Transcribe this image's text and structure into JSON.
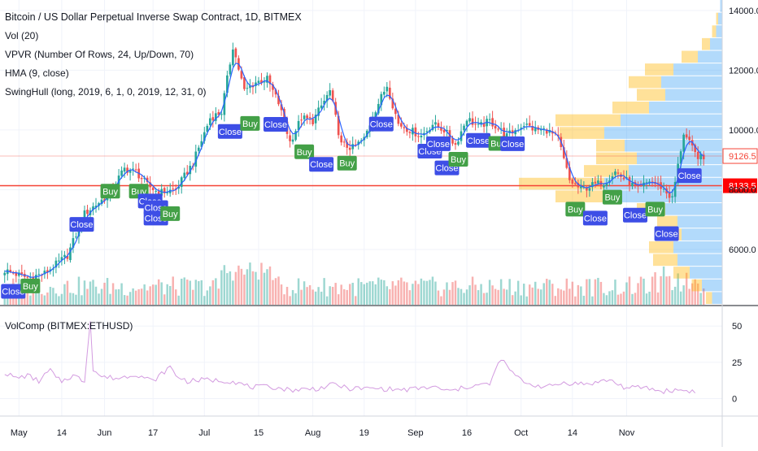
{
  "header": {
    "title": "Bitcoin / US Dollar Perpetual Inverse Swap Contract, 1D, BITMEX",
    "indicators": [
      "Vol (20)",
      "VPVR (Number Of Rows, 24, Up/Down, 70)",
      "HMA (9, close)",
      "SwingHull (long, 2019, 6, 1, 0, 2019, 12, 31, 0)"
    ]
  },
  "lower_pane": {
    "title": "VolComp (BITMEX:ETHUSD)"
  },
  "colors": {
    "up": "#26a69a",
    "down": "#ef5350",
    "hma": "#2962ff",
    "buy_label": "#43a047",
    "close_label": "#3d4ee6",
    "hline": "#f44336",
    "vpvr_up": "#2196f3",
    "vpvr_down": "#ffb300",
    "volcomp": "#d39be0"
  },
  "chart_data": [
    {
      "type": "candlestick",
      "title": "Bitcoin / US Dollar Perpetual Inverse Swap Contract, 1D, BITMEX",
      "x_ticks": [
        "May",
        "14",
        "Jun",
        "17",
        "Jul",
        "15",
        "Aug",
        "19",
        "Sep",
        "16",
        "Oct",
        "14",
        "Nov"
      ],
      "y_ticks": [
        "6000.0",
        "8000.0",
        "10000.0",
        "12000.0",
        "14000.0"
      ],
      "ylim": [
        4150,
        14350
      ],
      "anchors": [
        [
          0,
          5300
        ],
        [
          8,
          5050
        ],
        [
          14,
          5200
        ],
        [
          22,
          5800
        ],
        [
          28,
          7200
        ],
        [
          36,
          7800
        ],
        [
          42,
          8700
        ],
        [
          46,
          8600
        ],
        [
          50,
          8150
        ],
        [
          54,
          7900
        ],
        [
          60,
          8000
        ],
        [
          66,
          8900
        ],
        [
          72,
          10400
        ],
        [
          76,
          10600
        ],
        [
          80,
          12800
        ],
        [
          84,
          11300
        ],
        [
          88,
          11600
        ],
        [
          92,
          11700
        ],
        [
          96,
          10900
        ],
        [
          100,
          9600
        ],
        [
          104,
          10400
        ],
        [
          108,
          10300
        ],
        [
          114,
          11300
        ],
        [
          118,
          9500
        ],
        [
          122,
          9400
        ],
        [
          126,
          9700
        ],
        [
          130,
          10700
        ],
        [
          134,
          11500
        ],
        [
          138,
          10200
        ],
        [
          142,
          10000
        ],
        [
          146,
          9800
        ],
        [
          150,
          10200
        ],
        [
          154,
          10000
        ],
        [
          158,
          9500
        ],
        [
          162,
          10400
        ],
        [
          166,
          10100
        ],
        [
          170,
          10300
        ],
        [
          176,
          9800
        ],
        [
          182,
          10200
        ],
        [
          186,
          10000
        ],
        [
          190,
          10000
        ],
        [
          194,
          9700
        ],
        [
          198,
          8300
        ],
        [
          202,
          8000
        ],
        [
          206,
          8150
        ],
        [
          210,
          8250
        ],
        [
          214,
          8600
        ],
        [
          218,
          8300
        ],
        [
          222,
          8000
        ],
        [
          226,
          8300
        ],
        [
          230,
          8100
        ],
        [
          234,
          7700
        ],
        [
          238,
          9900
        ],
        [
          242,
          9200
        ],
        [
          245,
          9000
        ]
      ],
      "x_slots": 252,
      "hma_lag": 2,
      "horizontal_lines": [
        {
          "price": 8133.5,
          "label": "8133.5",
          "style": "solid"
        },
        {
          "price": 9126.5,
          "label": "9126.5",
          "style": "faint"
        }
      ],
      "signals": [
        {
          "text": "Close",
          "bar": 3,
          "price": 4600
        },
        {
          "text": "Buy",
          "bar": 9,
          "price": 4780
        },
        {
          "text": "Close",
          "bar": 27,
          "price": 6840
        },
        {
          "text": "Buy",
          "bar": 37,
          "price": 7950
        },
        {
          "text": "Buy",
          "bar": 47,
          "price": 7950
        },
        {
          "text": "Close",
          "bar": 51,
          "price": 7620
        },
        {
          "text": "Close",
          "bar": 53,
          "price": 7400
        },
        {
          "text": "Close",
          "bar": 53,
          "price": 7050
        },
        {
          "text": "Buy",
          "bar": 58,
          "price": 7200
        },
        {
          "text": "Close",
          "bar": 79,
          "price": 9950
        },
        {
          "text": "Buy",
          "bar": 86,
          "price": 10220
        },
        {
          "text": "Close",
          "bar": 95,
          "price": 10190
        },
        {
          "text": "Buy",
          "bar": 105,
          "price": 9270
        },
        {
          "text": "Close",
          "bar": 111,
          "price": 8850
        },
        {
          "text": "Buy",
          "bar": 120,
          "price": 8890
        },
        {
          "text": "Close",
          "bar": 132,
          "price": 10200
        },
        {
          "text": "Close",
          "bar": 149,
          "price": 9290
        },
        {
          "text": "Close",
          "bar": 152,
          "price": 9540
        },
        {
          "text": "Close",
          "bar": 155,
          "price": 8730
        },
        {
          "text": "Buy",
          "bar": 159,
          "price": 9020
        },
        {
          "text": "Close",
          "bar": 166,
          "price": 9650
        },
        {
          "text": "Buy",
          "bar": 173,
          "price": 9550
        },
        {
          "text": "Close",
          "bar": 178,
          "price": 9540
        },
        {
          "text": "Buy",
          "bar": 200,
          "price": 7350
        },
        {
          "text": "Close",
          "bar": 207,
          "price": 7050
        },
        {
          "text": "Buy",
          "bar": 213,
          "price": 7750
        },
        {
          "text": "Close",
          "bar": 221,
          "price": 7150
        },
        {
          "text": "Buy",
          "bar": 228,
          "price": 7350
        },
        {
          "text": "Close",
          "bar": 232,
          "price": 6530
        },
        {
          "text": "Close",
          "bar": 240,
          "price": 8470
        }
      ],
      "vpvr": {
        "row_height": 425,
        "rows": [
          {
            "price": 4362,
            "up": 0.05,
            "down": 0.03
          },
          {
            "price": 4787,
            "up": 0.1,
            "down": 0.05
          },
          {
            "price": 5212,
            "up": 0.16,
            "down": 0.08
          },
          {
            "price": 5637,
            "up": 0.22,
            "down": 0.12
          },
          {
            "price": 6062,
            "up": 0.24,
            "down": 0.12
          },
          {
            "price": 6487,
            "up": 0.2,
            "down": 0.1
          },
          {
            "price": 6912,
            "up": 0.22,
            "down": 0.1
          },
          {
            "price": 7337,
            "up": 0.28,
            "down": 0.14
          },
          {
            "price": 7762,
            "up": 0.52,
            "down": 0.3
          },
          {
            "price": 8187,
            "up": 0.58,
            "down": 0.42
          },
          {
            "price": 8612,
            "up": 0.46,
            "down": 0.22
          },
          {
            "price": 9037,
            "up": 0.42,
            "down": 0.2
          },
          {
            "price": 9462,
            "up": 0.48,
            "down": 0.14
          },
          {
            "price": 9887,
            "up": 0.58,
            "down": 0.22
          },
          {
            "price": 10312,
            "up": 0.5,
            "down": 0.32
          },
          {
            "price": 10737,
            "up": 0.36,
            "down": 0.18
          },
          {
            "price": 11162,
            "up": 0.28,
            "down": 0.14
          },
          {
            "price": 11587,
            "up": 0.3,
            "down": 0.16
          },
          {
            "price": 12012,
            "up": 0.24,
            "down": 0.14
          },
          {
            "price": 12437,
            "up": 0.12,
            "down": 0.08
          },
          {
            "price": 12862,
            "up": 0.06,
            "down": 0.04
          },
          {
            "price": 13287,
            "up": 0.03,
            "down": 0.02
          },
          {
            "price": 13712,
            "up": 0.02,
            "down": 0.01
          },
          {
            "price": 14137,
            "up": 0.01,
            "down": 0.0
          }
        ]
      }
    },
    {
      "type": "line",
      "title": "VolComp (BITMEX:ETHUSD)",
      "y_ticks": [
        "0",
        "25",
        "50"
      ],
      "ylim": [
        -12,
        63
      ],
      "anchors": [
        [
          0,
          18
        ],
        [
          4,
          14
        ],
        [
          8,
          16
        ],
        [
          12,
          12
        ],
        [
          16,
          20
        ],
        [
          18,
          14
        ],
        [
          20,
          12
        ],
        [
          24,
          16
        ],
        [
          28,
          12
        ],
        [
          30,
          55
        ],
        [
          31,
          20
        ],
        [
          34,
          15
        ],
        [
          40,
          14
        ],
        [
          46,
          17
        ],
        [
          52,
          12
        ],
        [
          58,
          22
        ],
        [
          60,
          16
        ],
        [
          64,
          12
        ],
        [
          70,
          13
        ],
        [
          80,
          12
        ],
        [
          86,
          8
        ],
        [
          94,
          8
        ],
        [
          100,
          6
        ],
        [
          110,
          7
        ],
        [
          116,
          10
        ],
        [
          120,
          7
        ],
        [
          130,
          7
        ],
        [
          140,
          6
        ],
        [
          150,
          8
        ],
        [
          156,
          5
        ],
        [
          164,
          9
        ],
        [
          170,
          10
        ],
        [
          174,
          28
        ],
        [
          176,
          22
        ],
        [
          180,
          14
        ],
        [
          184,
          10
        ],
        [
          190,
          8
        ],
        [
          196,
          11
        ],
        [
          204,
          10
        ],
        [
          212,
          13
        ],
        [
          218,
          7
        ],
        [
          224,
          8
        ],
        [
          230,
          5
        ],
        [
          236,
          6
        ],
        [
          242,
          5
        ]
      ]
    }
  ]
}
